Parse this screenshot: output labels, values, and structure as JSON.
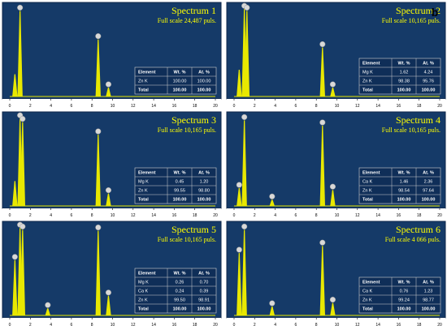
{
  "figure_letter": "b",
  "colors": {
    "panel_bg": "#153a68",
    "panel_border": "#0e2648",
    "peak": "#e8e800",
    "label_bubble": "#d8d8d8",
    "table_bg": "#0f2e58",
    "table_line": "#d0d0d0",
    "axis_strip": "#ffffff"
  },
  "chart_data": [
    {
      "type": "bar",
      "title": "Spectrum 1",
      "subtitle": "Full scale 24,487 puls.",
      "xlim": [
        0,
        20
      ],
      "x_ticks": [
        "0",
        "2",
        "4",
        "6",
        "8",
        "10",
        "12",
        "14",
        "16",
        "18",
        "20"
      ],
      "ylim": [
        0,
        1
      ],
      "peaks": [
        {
          "x": 0.5,
          "y": 0.25,
          "labeled": false
        },
        {
          "x": 1.0,
          "y": 0.96,
          "labeled": true
        },
        {
          "x": 8.6,
          "y": 0.64,
          "labeled": true
        },
        {
          "x": 9.6,
          "y": 0.1,
          "labeled": true
        }
      ],
      "table": {
        "headers": [
          "Element",
          "Wt. %",
          "At. %"
        ],
        "rows": [
          [
            "Zn K",
            "100.00",
            "100.00"
          ],
          [
            "Total",
            "100.00",
            "100.00"
          ]
        ]
      }
    },
    {
      "type": "bar",
      "title": "Spectrum 2",
      "subtitle": "Full scale 10,165 puls.",
      "xlim": [
        0,
        20
      ],
      "x_ticks": [
        "0",
        "2",
        "4",
        "6",
        "8",
        "10",
        "12",
        "14",
        "16",
        "18",
        "20"
      ],
      "ylim": [
        0,
        1
      ],
      "peaks": [
        {
          "x": 0.5,
          "y": 0.3,
          "labeled": false
        },
        {
          "x": 1.0,
          "y": 0.98,
          "labeled": true
        },
        {
          "x": 1.25,
          "y": 0.96,
          "labeled": true
        },
        {
          "x": 8.6,
          "y": 0.55,
          "labeled": true
        },
        {
          "x": 9.6,
          "y": 0.1,
          "labeled": true
        }
      ],
      "table": {
        "headers": [
          "Element",
          "Wt. %",
          "At. %"
        ],
        "rows": [
          [
            "Mg K",
            "1.62",
            "4.24"
          ],
          [
            "Zn K",
            "98.38",
            "95.76"
          ],
          [
            "Total",
            "100.00",
            "100.00"
          ]
        ]
      }
    },
    {
      "type": "bar",
      "title": "Spectrum 3",
      "subtitle": "Full scale 10,165 puls.",
      "xlim": [
        0,
        20
      ],
      "x_ticks": [
        "0",
        "2",
        "4",
        "6",
        "8",
        "10",
        "12",
        "14",
        "16",
        "18",
        "20"
      ],
      "ylim": [
        0,
        1
      ],
      "peaks": [
        {
          "x": 0.5,
          "y": 0.28,
          "labeled": false
        },
        {
          "x": 1.0,
          "y": 0.98,
          "labeled": true
        },
        {
          "x": 1.25,
          "y": 0.94,
          "labeled": true
        },
        {
          "x": 8.6,
          "y": 0.8,
          "labeled": true
        },
        {
          "x": 9.6,
          "y": 0.14,
          "labeled": true
        }
      ],
      "table": {
        "headers": [
          "Element",
          "Wt. %",
          "At. %"
        ],
        "rows": [
          [
            "Mg K",
            "0.45",
            "1.20"
          ],
          [
            "Zn K",
            "99.55",
            "98.80"
          ],
          [
            "Total",
            "100.00",
            "100.00"
          ]
        ]
      }
    },
    {
      "type": "bar",
      "title": "Spectrum 4",
      "subtitle": "Full scale 10,165 puls.",
      "xlim": [
        0,
        20
      ],
      "x_ticks": [
        "0",
        "2",
        "4",
        "6",
        "8",
        "10",
        "12",
        "14",
        "16",
        "18",
        "20"
      ],
      "ylim": [
        0,
        1
      ],
      "peaks": [
        {
          "x": 0.5,
          "y": 0.2,
          "labeled": true
        },
        {
          "x": 1.0,
          "y": 0.96,
          "labeled": true
        },
        {
          "x": 3.7,
          "y": 0.07,
          "labeled": true
        },
        {
          "x": 8.6,
          "y": 0.9,
          "labeled": true
        },
        {
          "x": 9.6,
          "y": 0.18,
          "labeled": true
        }
      ],
      "table": {
        "headers": [
          "Element",
          "Wt. %",
          "At. %"
        ],
        "rows": [
          [
            "Ca K",
            "1.46",
            "2.36"
          ],
          [
            "Zn K",
            "98.54",
            "97.64"
          ],
          [
            "Total",
            "100.00",
            "100.00"
          ]
        ]
      }
    },
    {
      "type": "bar",
      "title": "Spectrum 5",
      "subtitle": "Full scale 10,165 puls.",
      "xlim": [
        0,
        20
      ],
      "x_ticks": [
        "0",
        "2",
        "4",
        "6",
        "8",
        "10",
        "12",
        "14",
        "16",
        "18",
        "20"
      ],
      "ylim": [
        0,
        1
      ],
      "peaks": [
        {
          "x": 0.5,
          "y": 0.62,
          "labeled": true
        },
        {
          "x": 1.0,
          "y": 0.98,
          "labeled": true
        },
        {
          "x": 1.25,
          "y": 0.96,
          "labeled": true
        },
        {
          "x": 3.7,
          "y": 0.08,
          "labeled": true
        },
        {
          "x": 8.6,
          "y": 0.95,
          "labeled": true
        },
        {
          "x": 9.6,
          "y": 0.22,
          "labeled": true
        }
      ],
      "table": {
        "headers": [
          "Element",
          "Wt. %",
          "At. %"
        ],
        "rows": [
          [
            "Mg K",
            "0.26",
            "0.70"
          ],
          [
            "Ca K",
            "0.24",
            "0.39"
          ],
          [
            "Zn K",
            "99.50",
            "98.91"
          ],
          [
            "Total",
            "100.00",
            "100.00"
          ]
        ]
      }
    },
    {
      "type": "bar",
      "title": "Spectrum 6",
      "subtitle": "Full scale 4 066 puls.",
      "xlim": [
        0,
        20
      ],
      "x_ticks": [
        "0",
        "2",
        "4",
        "6",
        "8",
        "10",
        "12",
        "14",
        "16",
        "18",
        "20"
      ],
      "ylim": [
        0,
        1
      ],
      "peaks": [
        {
          "x": 0.5,
          "y": 0.7,
          "labeled": true
        },
        {
          "x": 1.0,
          "y": 0.96,
          "labeled": true
        },
        {
          "x": 3.7,
          "y": 0.1,
          "labeled": true
        },
        {
          "x": 8.6,
          "y": 0.78,
          "labeled": true
        },
        {
          "x": 9.6,
          "y": 0.14,
          "labeled": true
        }
      ],
      "table": {
        "headers": [
          "Element",
          "Wt. %",
          "At. %"
        ],
        "rows": [
          [
            "Ca K",
            "0.76",
            "1.23"
          ],
          [
            "Zn K",
            "99.24",
            "98.77"
          ],
          [
            "Total",
            "100.00",
            "100.00"
          ]
        ]
      }
    }
  ]
}
